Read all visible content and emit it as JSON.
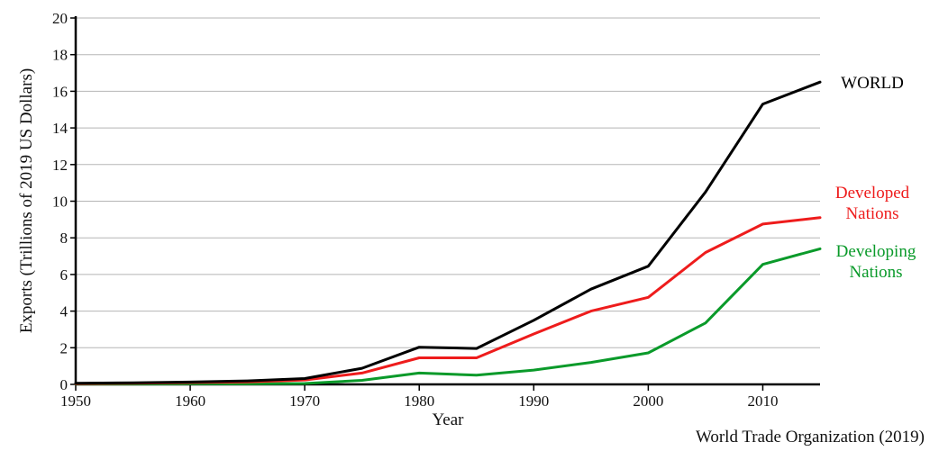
{
  "chart_data": {
    "type": "line",
    "title": "",
    "xlabel": "Year",
    "ylabel": "Exports (Trillions of 2019 US Dollars)",
    "source": "World Trade Organization (2019)",
    "xlim": [
      1950,
      2015
    ],
    "ylim": [
      0,
      20
    ],
    "x_ticks": [
      1950,
      1960,
      1970,
      1980,
      1990,
      2000,
      2010
    ],
    "y_ticks": [
      0,
      2,
      4,
      6,
      8,
      10,
      12,
      14,
      16,
      18,
      20
    ],
    "grid": "horizontal",
    "legend_placement": "inline labels at right end of lines",
    "x": [
      1950,
      1955,
      1960,
      1965,
      1970,
      1975,
      1980,
      1985,
      1990,
      1995,
      2000,
      2005,
      2010,
      2015
    ],
    "series": [
      {
        "label_lines": [
          "WORLD"
        ],
        "color": "#000000",
        "values": [
          0.06,
          0.09,
          0.13,
          0.19,
          0.32,
          0.88,
          2.03,
          1.96,
          3.5,
          5.2,
          6.45,
          10.5,
          15.3,
          16.5
        ]
      },
      {
        "label_lines": [
          "Developed",
          "Nations"
        ],
        "color": "#ee1c1c",
        "values": [
          0.04,
          0.06,
          0.1,
          0.14,
          0.24,
          0.62,
          1.45,
          1.45,
          2.75,
          4.0,
          4.75,
          7.2,
          8.75,
          9.1
        ]
      },
      {
        "label_lines": [
          "Developing",
          "Nations"
        ],
        "color": "#0a9a2a",
        "values": [
          0.02,
          0.02,
          0.03,
          0.03,
          0.05,
          0.22,
          0.62,
          0.5,
          0.78,
          1.2,
          1.72,
          3.35,
          6.55,
          7.4
        ]
      }
    ]
  }
}
